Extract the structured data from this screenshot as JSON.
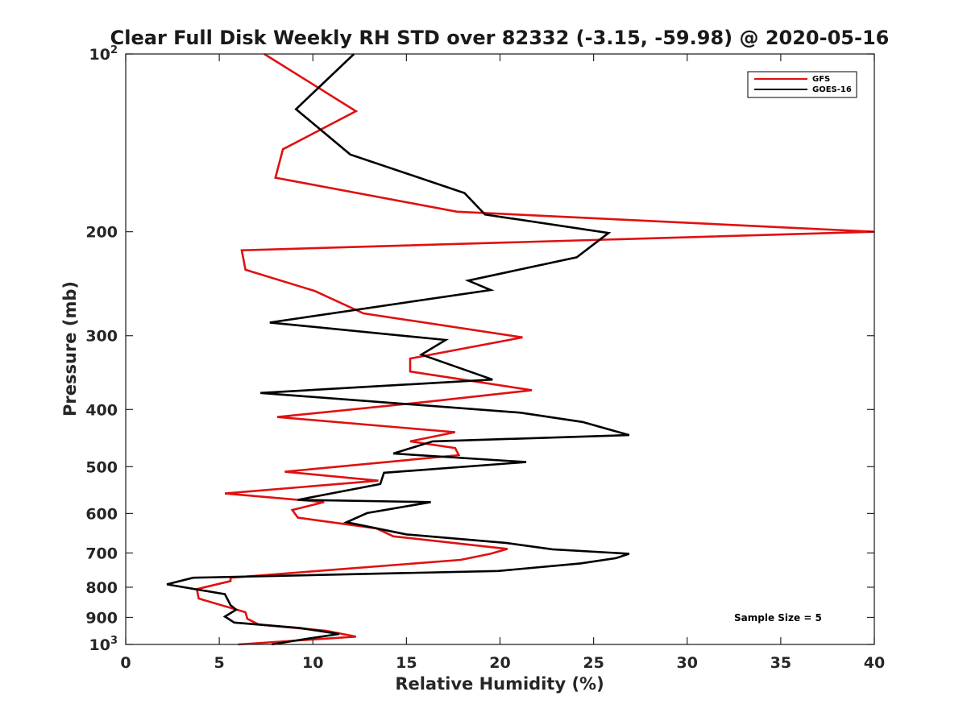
{
  "chart_data": {
    "type": "line",
    "title": "Clear Full Disk Weekly RH STD over 82332 (-3.15, -59.98) @ 2020-05-16",
    "xlabel": "Relative Humidity (%)",
    "ylabel": "Pressure (mb)",
    "xlim": [
      0,
      40
    ],
    "ylim": [
      100,
      1000
    ],
    "yscale": "log",
    "y_reversed": true,
    "x_ticks": [
      "0",
      "5",
      "10",
      "15",
      "20",
      "25",
      "30",
      "35",
      "40"
    ],
    "y_ticks": [
      {
        "value": 100,
        "base": "10",
        "exp": "2"
      },
      {
        "value": 200,
        "label": "200"
      },
      {
        "value": 300,
        "label": "300"
      },
      {
        "value": 400,
        "label": "400"
      },
      {
        "value": 500,
        "label": "500"
      },
      {
        "value": 600,
        "label": "600"
      },
      {
        "value": 700,
        "label": "700"
      },
      {
        "value": 800,
        "label": "800"
      },
      {
        "value": 900,
        "label": "900"
      },
      {
        "value": 1000,
        "base": "10",
        "exp": "3"
      }
    ],
    "grid": false,
    "legend_position": "top-right",
    "annotation": "Sample Size = 5",
    "series": [
      {
        "name": "GFS",
        "color": "#e01010",
        "points": [
          [
            7.4,
            100
          ],
          [
            12.3,
            125
          ],
          [
            8.4,
            145
          ],
          [
            8.0,
            162
          ],
          [
            17.7,
            185
          ],
          [
            40.0,
            200
          ],
          [
            6.2,
            215
          ],
          [
            6.4,
            232
          ],
          [
            10.1,
            252
          ],
          [
            12.7,
            275
          ],
          [
            21.2,
            302
          ],
          [
            15.2,
            328
          ],
          [
            15.2,
            345
          ],
          [
            21.7,
            371
          ],
          [
            16.2,
            388
          ],
          [
            8.1,
            412
          ],
          [
            17.6,
            437
          ],
          [
            15.2,
            453
          ],
          [
            17.6,
            465
          ],
          [
            17.8,
            478
          ],
          [
            8.5,
            510
          ],
          [
            13.5,
            528
          ],
          [
            5.3,
            555
          ],
          [
            10.6,
            574
          ],
          [
            8.9,
            592
          ],
          [
            9.2,
            610
          ],
          [
            13.4,
            636
          ],
          [
            14.3,
            656
          ],
          [
            20.4,
            689
          ],
          [
            19.5,
            702
          ],
          [
            17.9,
            719
          ],
          [
            5.6,
            771
          ],
          [
            5.6,
            781
          ],
          [
            3.8,
            806
          ],
          [
            3.9,
            836
          ],
          [
            6.4,
            882
          ],
          [
            6.5,
            905
          ],
          [
            7.1,
            925
          ],
          [
            10.7,
            948
          ],
          [
            12.3,
            970
          ],
          [
            6.0,
            1000
          ]
        ]
      },
      {
        "name": "GOES-16",
        "color": "#000000",
        "points": [
          [
            12.2,
            100
          ],
          [
            9.1,
            124
          ],
          [
            12.0,
            148
          ],
          [
            18.1,
            172
          ],
          [
            19.2,
            187
          ],
          [
            25.8,
            201
          ],
          [
            24.1,
            221
          ],
          [
            18.3,
            242
          ],
          [
            19.5,
            251
          ],
          [
            7.7,
            285
          ],
          [
            17.1,
            305
          ],
          [
            15.8,
            323
          ],
          [
            19.6,
            356
          ],
          [
            7.2,
            375
          ],
          [
            21.1,
            405
          ],
          [
            24.4,
            420
          ],
          [
            26.9,
            442
          ],
          [
            16.4,
            453
          ],
          [
            14.3,
            475
          ],
          [
            21.4,
            491
          ],
          [
            13.8,
            512
          ],
          [
            13.6,
            535
          ],
          [
            9.2,
            569
          ],
          [
            16.3,
            574
          ],
          [
            12.9,
            599
          ],
          [
            11.8,
            621
          ],
          [
            15.0,
            651
          ],
          [
            20.3,
            673
          ],
          [
            22.8,
            690
          ],
          [
            26.9,
            702
          ],
          [
            26.2,
            714
          ],
          [
            24.3,
            729
          ],
          [
            19.9,
            751
          ],
          [
            3.6,
            771
          ],
          [
            2.2,
            791
          ],
          [
            5.3,
            822
          ],
          [
            5.6,
            858
          ],
          [
            5.9,
            873
          ],
          [
            5.3,
            897
          ],
          [
            5.8,
            918
          ],
          [
            9.3,
            938
          ],
          [
            11.4,
            960
          ],
          [
            9.5,
            980
          ],
          [
            7.8,
            1000
          ]
        ]
      }
    ]
  }
}
